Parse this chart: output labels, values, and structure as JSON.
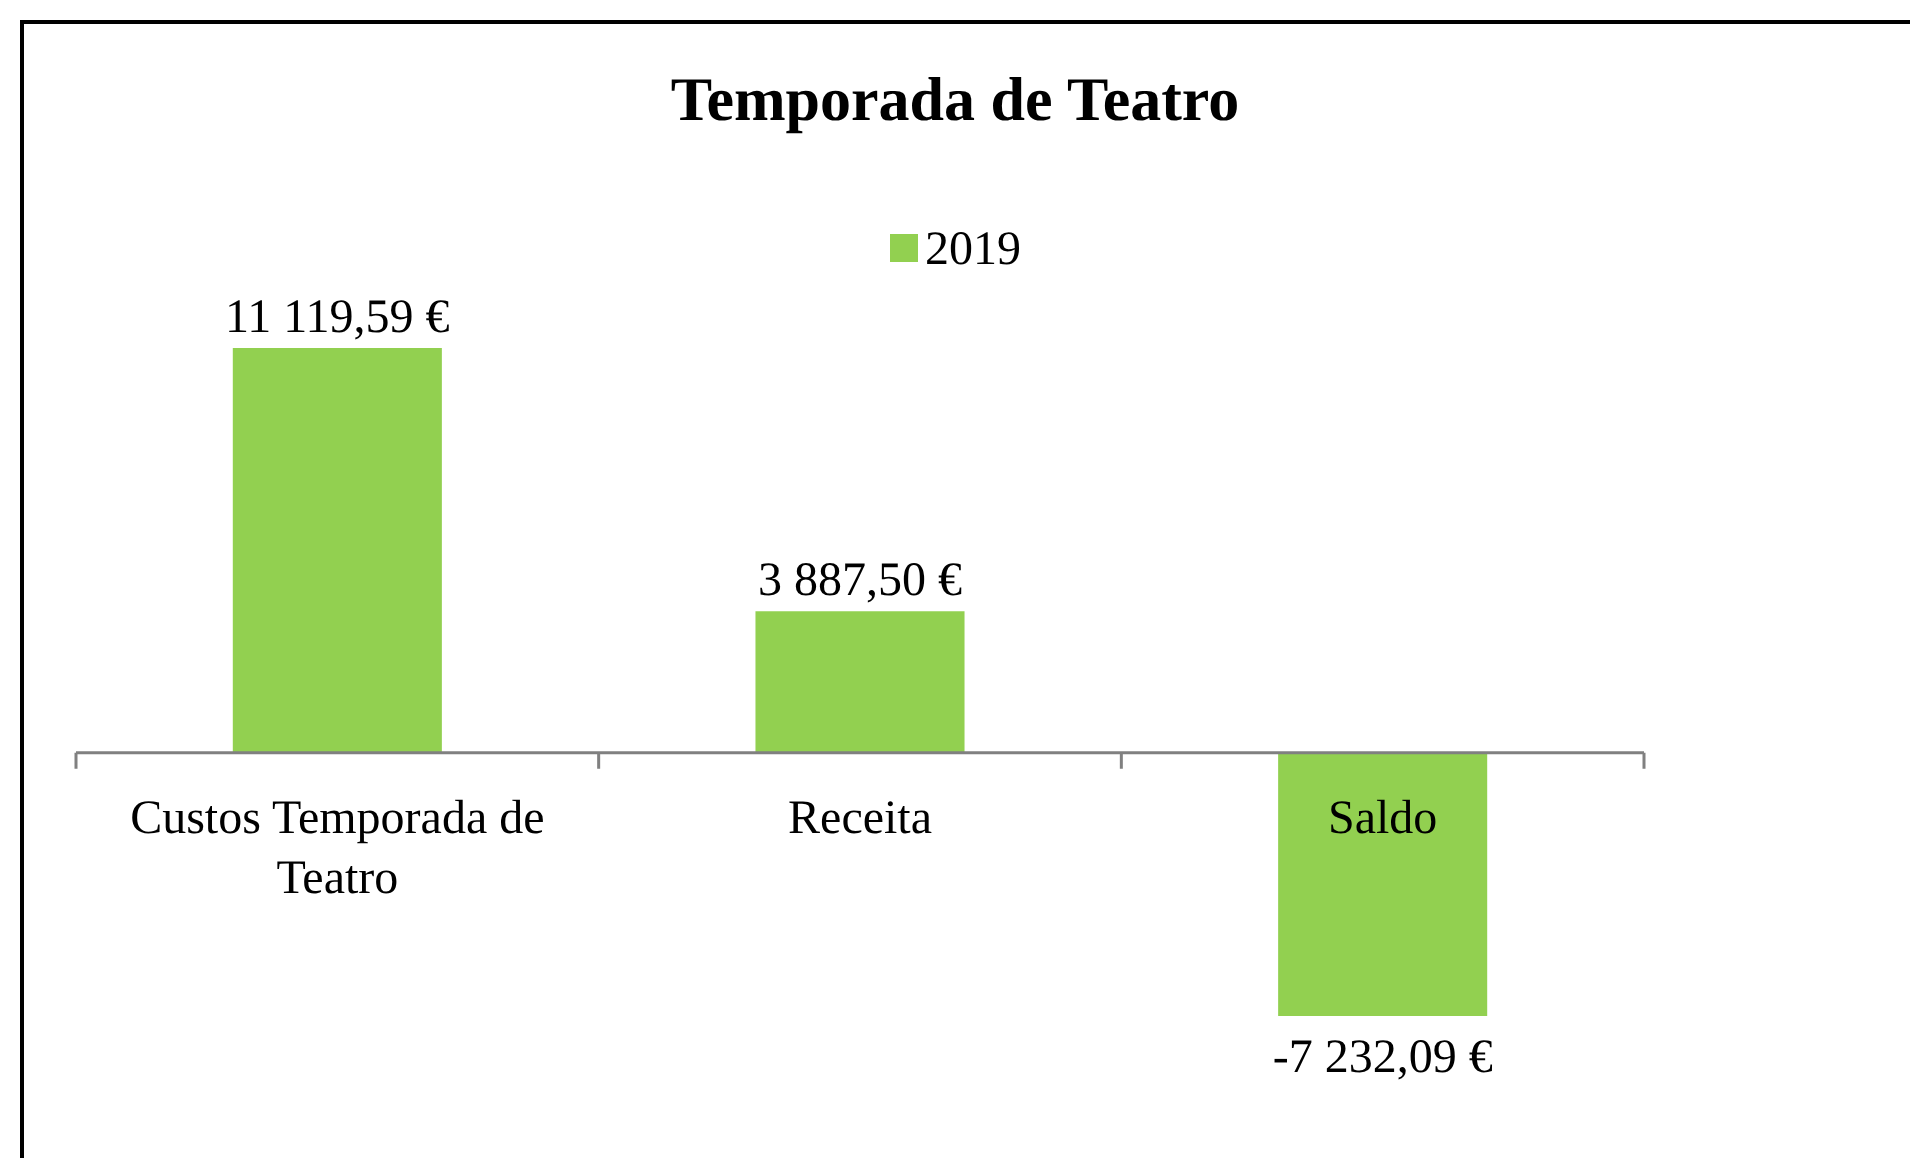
{
  "chart_data": {
    "type": "bar",
    "title": "Temporada de Teatro",
    "categories": [
      "Custos Temporada de Teatro",
      "Receita",
      "Saldo"
    ],
    "series": [
      {
        "name": "2019",
        "color": "#92d050",
        "values": [
          11119.59,
          3887.5,
          -7232.09
        ],
        "value_labels": [
          "11 119,59 €",
          "3 887,50 €",
          "-7 232,09 €"
        ]
      }
    ],
    "legend": "top"
  }
}
